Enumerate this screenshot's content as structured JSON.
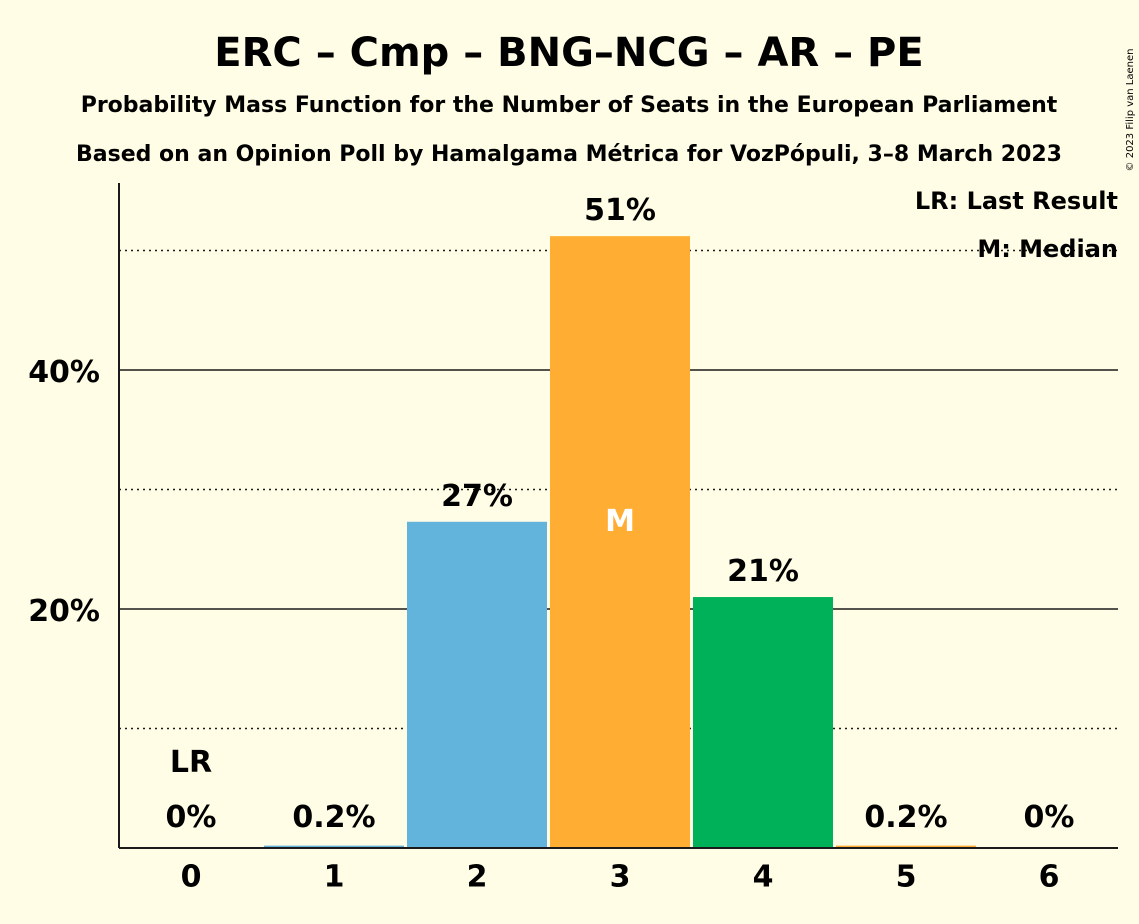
{
  "title": "ERC – Cmp – BNG–NCG – AR – PE",
  "subtitle1": "Probability Mass Function for the Number of Seats in the European Parliament",
  "subtitle2": "Based on an Opinion Poll by Hamalgama Métrica for VozPópuli, 3–8 March 2023",
  "copyright": "© 2023 Filip van Laenen",
  "legend": {
    "last_result": "LR: Last Result",
    "median": "M: Median"
  },
  "chart_data": {
    "type": "bar",
    "categories": [
      "0",
      "1",
      "2",
      "3",
      "4",
      "5",
      "6"
    ],
    "values": [
      0,
      0.2,
      27.3,
      51.2,
      21.0,
      0.2,
      0
    ],
    "labels": [
      "0%",
      "0.2%",
      "27%",
      "51%",
      "21%",
      "0.2%",
      "0%"
    ],
    "colors": [
      "#63b4dd",
      "#63b4dd",
      "#63b4dd",
      "#ffae33",
      "#00b159",
      "#ffae33",
      "#ffae33"
    ],
    "ylim": [
      0,
      56
    ],
    "yticks_major": [
      20,
      40
    ],
    "ytick_labels": [
      "20%",
      "40%"
    ],
    "yticks_minor": [
      10,
      30,
      50
    ],
    "last_result_index": 0,
    "last_result_marker": "LR",
    "median_index": 3,
    "median_marker": "M"
  }
}
